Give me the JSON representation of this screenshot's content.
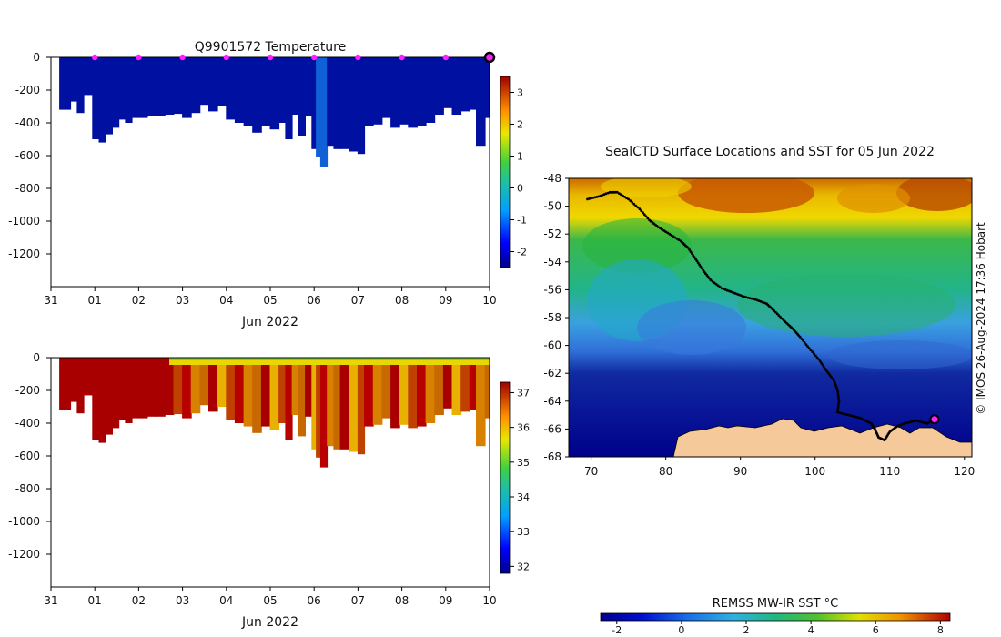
{
  "chart_data": [
    {
      "type": "heatmap",
      "name": "temperature-section",
      "title": "Q9901572  Temperature",
      "xlabel": "Jun 2022",
      "x_tick_labels": [
        "31",
        "01",
        "02",
        "03",
        "04",
        "05",
        "06",
        "07",
        "08",
        "09",
        "10"
      ],
      "xlim": [
        0,
        10
      ],
      "y_tick_labels": [
        "0",
        "-200",
        "-400",
        "-600",
        "-800",
        "-1000",
        "-1200"
      ],
      "y_ticks": [
        0,
        -200,
        -400,
        -600,
        -800,
        -1000,
        -1200
      ],
      "ylim": [
        -1400,
        0
      ],
      "colorbar": {
        "ticks": [
          -2,
          -1,
          0,
          1,
          2,
          3
        ],
        "tick_labels": [
          "-2",
          "-1",
          "0",
          "1",
          "2",
          "3"
        ],
        "range": [
          -2.5,
          3.5
        ]
      },
      "profile_markers_x": [
        1,
        2,
        3,
        4,
        5,
        6,
        7,
        8,
        9
      ],
      "last_profile_x": 10,
      "profile_depths": [
        [
          0.2,
          -320
        ],
        [
          0.45,
          -270
        ],
        [
          0.6,
          -340
        ],
        [
          0.75,
          -230
        ],
        [
          0.95,
          -500
        ],
        [
          1.1,
          -520
        ],
        [
          1.25,
          -470
        ],
        [
          1.4,
          -430
        ],
        [
          1.55,
          -380
        ],
        [
          1.7,
          -400
        ],
        [
          1.85,
          -370
        ],
        [
          2.0,
          -370
        ],
        [
          2.2,
          -360
        ],
        [
          2.4,
          -360
        ],
        [
          2.6,
          -350
        ],
        [
          2.8,
          -345
        ],
        [
          3.0,
          -370
        ],
        [
          3.2,
          -340
        ],
        [
          3.4,
          -290
        ],
        [
          3.6,
          -330
        ],
        [
          3.8,
          -300
        ],
        [
          4.0,
          -380
        ],
        [
          4.2,
          -400
        ],
        [
          4.4,
          -420
        ],
        [
          4.6,
          -460
        ],
        [
          4.8,
          -420
        ],
        [
          5.0,
          -440
        ],
        [
          5.2,
          -400
        ],
        [
          5.35,
          -500
        ],
        [
          5.5,
          -350
        ],
        [
          5.65,
          -480
        ],
        [
          5.8,
          -360
        ],
        [
          5.95,
          -560
        ],
        [
          6.05,
          -610
        ],
        [
          6.15,
          -670
        ],
        [
          6.3,
          -540
        ],
        [
          6.45,
          -560
        ],
        [
          6.6,
          -560
        ],
        [
          6.8,
          -575
        ],
        [
          7.0,
          -590
        ],
        [
          7.15,
          -420
        ],
        [
          7.35,
          -410
        ],
        [
          7.55,
          -370
        ],
        [
          7.75,
          -430
        ],
        [
          7.95,
          -410
        ],
        [
          8.15,
          -430
        ],
        [
          8.35,
          -420
        ],
        [
          8.55,
          -400
        ],
        [
          8.75,
          -350
        ],
        [
          8.95,
          -310
        ],
        [
          9.15,
          -350
        ],
        [
          9.35,
          -330
        ],
        [
          9.55,
          -320
        ],
        [
          9.7,
          -540
        ],
        [
          9.9,
          -370
        ]
      ]
    },
    {
      "type": "heatmap",
      "name": "salinity-section",
      "xlabel": "Jun 2022",
      "x_tick_labels": [
        "31",
        "01",
        "02",
        "03",
        "04",
        "05",
        "06",
        "07",
        "08",
        "09",
        "10"
      ],
      "xlim": [
        0,
        10
      ],
      "y_tick_labels": [
        "0",
        "-200",
        "-400",
        "-600",
        "-800",
        "-1000",
        "-1200"
      ],
      "y_ticks": [
        0,
        -200,
        -400,
        -600,
        -800,
        -1000,
        -1200
      ],
      "ylim": [
        -1400,
        0
      ],
      "colorbar": {
        "ticks": [
          32,
          33,
          34,
          35,
          36,
          37
        ],
        "tick_labels": [
          "32",
          "33",
          "34",
          "35",
          "36",
          "37"
        ],
        "range": [
          31.8,
          37.3
        ]
      },
      "high_salinity_before_x": 2.7
    },
    {
      "type": "heatmap",
      "name": "sst-map",
      "title": "SealCTD Surface Locations and SST for 05 Jun 2022",
      "x_tick_labels": [
        "70",
        "80",
        "90",
        "100",
        "110",
        "120"
      ],
      "x_ticks": [
        70,
        80,
        90,
        100,
        110,
        120
      ],
      "xlim": [
        67,
        121
      ],
      "y_tick_labels": [
        "-48",
        "-50",
        "-52",
        "-54",
        "-56",
        "-58",
        "-60",
        "-62",
        "-64",
        "-66",
        "-68"
      ],
      "y_ticks": [
        -48,
        -50,
        -52,
        -54,
        -56,
        -58,
        -60,
        -62,
        -64,
        -66,
        -68
      ],
      "ylim": [
        -68,
        -48
      ],
      "colorbar": {
        "label": "REMSS MW-IR SST °C",
        "ticks": [
          -2,
          0,
          2,
          4,
          6,
          8
        ],
        "tick_labels": [
          "-2",
          "0",
          "2",
          "4",
          "6",
          "8"
        ],
        "range": [
          -2.5,
          8.3
        ]
      },
      "track": [
        [
          69.5,
          -49.5
        ],
        [
          71,
          -49.3
        ],
        [
          72.5,
          -49
        ],
        [
          73.5,
          -49
        ],
        [
          75,
          -49.5
        ],
        [
          76.5,
          -50.2
        ],
        [
          77.8,
          -51
        ],
        [
          79,
          -51.5
        ],
        [
          80.5,
          -52
        ],
        [
          82,
          -52.5
        ],
        [
          83,
          -53
        ],
        [
          84,
          -53.8
        ],
        [
          85,
          -54.6
        ],
        [
          86,
          -55.3
        ],
        [
          87.5,
          -55.9
        ],
        [
          89,
          -56.2
        ],
        [
          90.5,
          -56.5
        ],
        [
          92,
          -56.7
        ],
        [
          93.5,
          -57
        ],
        [
          94.5,
          -57.5
        ],
        [
          95.8,
          -58.2
        ],
        [
          97,
          -58.8
        ],
        [
          98,
          -59.4
        ],
        [
          99.2,
          -60.2
        ],
        [
          100.5,
          -61
        ],
        [
          101.5,
          -61.8
        ],
        [
          102.5,
          -62.5
        ],
        [
          103,
          -63.2
        ],
        [
          103.2,
          -64
        ],
        [
          103,
          -64.8
        ],
        [
          104.5,
          -65
        ],
        [
          106,
          -65.2
        ],
        [
          107.5,
          -65.6
        ],
        [
          108,
          -66
        ],
        [
          108.5,
          -66.6
        ],
        [
          109.3,
          -66.8
        ],
        [
          110,
          -66.2
        ],
        [
          111,
          -65.8
        ],
        [
          112,
          -65.6
        ],
        [
          113.5,
          -65.4
        ],
        [
          115,
          -65.6
        ],
        [
          116,
          -65.3
        ]
      ],
      "last_location": [
        116,
        -65.3
      ]
    }
  ],
  "watermark": "© IMOS 26-Aug-2024 17:36 Hobart"
}
